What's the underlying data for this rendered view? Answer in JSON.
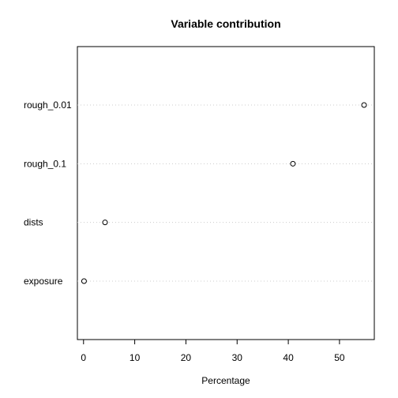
{
  "chart_data": {
    "type": "scatter",
    "title": "Variable contribution",
    "xlabel": "Percentage",
    "ylabel": "",
    "xlim": [
      -1.2,
      56.8
    ],
    "xticks": [
      0,
      10,
      20,
      30,
      40,
      50
    ],
    "categories": [
      "rough_0.01",
      "rough_0.1",
      "dists",
      "exposure"
    ],
    "values": [
      54.8,
      40.9,
      4.2,
      0.1
    ],
    "grid": "dotted horizontal guide per category",
    "legend": "none"
  }
}
